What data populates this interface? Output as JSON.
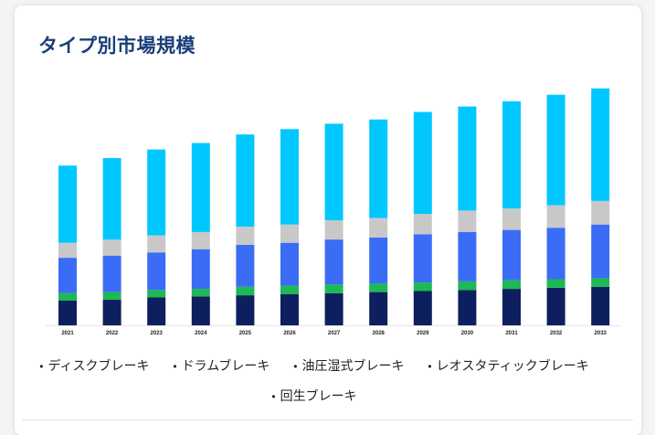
{
  "title": "タイプ別市場規模",
  "chart_data": {
    "type": "bar",
    "stacked": true,
    "categories": [
      "2021",
      "2022",
      "2023",
      "2024",
      "2025",
      "2026",
      "2027",
      "2028",
      "2029",
      "2030",
      "2031",
      "2032",
      "2033"
    ],
    "ylim": [
      0,
      225
    ],
    "grid": false,
    "legend_position": "bottom",
    "series": [
      {
        "name": "回生ブレーキ",
        "color": "#0d1f5e",
        "values": [
          23,
          24,
          26,
          27,
          28,
          29,
          30,
          31,
          32,
          33,
          34,
          35,
          36
        ]
      },
      {
        "name": "レオスタティックブレーキ",
        "color": "#1db954",
        "values": [
          7,
          7,
          7,
          7,
          8,
          8,
          8,
          8,
          8,
          8,
          8,
          8,
          8
        ]
      },
      {
        "name": "油圧湿式ブレーキ",
        "color": "#3b6cf6",
        "values": [
          33,
          34,
          35,
          37,
          39,
          40,
          42,
          43,
          45,
          46,
          47,
          48,
          50
        ]
      },
      {
        "name": "ドラムブレーキ",
        "color": "#c8c8c8",
        "values": [
          14,
          15,
          16,
          16,
          17,
          17,
          18,
          18,
          19,
          20,
          20,
          21,
          22
        ]
      },
      {
        "name": "ディスクブレーキ",
        "color": "#00c8ff",
        "values": [
          72,
          76,
          80,
          83,
          86,
          89,
          90,
          92,
          95,
          97,
          100,
          103,
          105
        ]
      }
    ]
  },
  "legend_order": [
    "ディスクブレーキ",
    "ドラムブレーキ",
    "油圧湿式ブレーキ",
    "レオスタティックブレーキ",
    "回生ブレーキ"
  ]
}
